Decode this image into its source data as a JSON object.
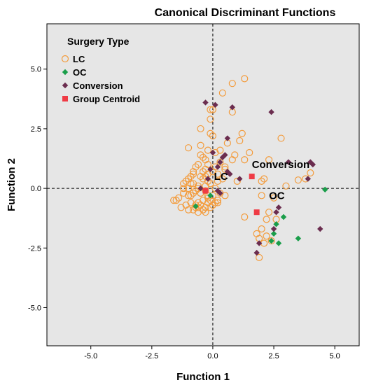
{
  "chart_data": {
    "type": "scatter",
    "title": "Canonical Discriminant Functions",
    "xlabel": "Function 1",
    "ylabel": "Function 2",
    "xlim": [
      -6.8,
      6.0
    ],
    "ylim": [
      -6.6,
      6.9
    ],
    "xticks": [
      -5.0,
      -2.5,
      0.0,
      2.5,
      5.0
    ],
    "xtick_labels": [
      "-5.0",
      "-2.5",
      "0.0",
      "2.5",
      "5.0"
    ],
    "yticks": [
      -5.0,
      -2.5,
      0.0,
      2.5,
      5.0
    ],
    "ytick_labels": [
      "-5.0",
      "-2.5",
      "0.0",
      "2.5",
      "5.0"
    ],
    "reference_lines": {
      "x": 0.0,
      "y": 0.0,
      "style": "dashed"
    },
    "grid": false,
    "legend": {
      "title": "Surgery Type",
      "placement": "top-left",
      "entries": [
        {
          "label": "LC",
          "marker": "open-circle",
          "color": "#f39c3d"
        },
        {
          "label": "OC",
          "marker": "diamond",
          "color": "#1a9e4a"
        },
        {
          "label": "Conversion",
          "marker": "diamond",
          "color": "#6b2d4f"
        },
        {
          "label": "Group Centroid",
          "marker": "square",
          "color": "#ef3b45"
        }
      ]
    },
    "annotations": [
      {
        "text": "LC",
        "x": 0.05,
        "y": 0.35
      },
      {
        "text": "Conversion",
        "x": 1.6,
        "y": 0.85
      },
      {
        "text": "OC",
        "x": 2.3,
        "y": -0.45
      }
    ],
    "series": [
      {
        "name": "LC",
        "marker": "open-circle",
        "color": "#f39c3d",
        "x": [
          1.3,
          0.8,
          0.4,
          0.0,
          -0.1,
          0.8,
          -0.1,
          -0.1,
          1.2,
          2.8,
          1.1,
          0.6,
          2.3,
          0.8,
          -1.0,
          -0.5,
          0.3,
          1.5,
          0.9,
          1.3,
          2.1,
          3.8,
          4.0,
          3.5,
          3.0,
          2.0,
          -0.5,
          -0.4,
          -0.3,
          -0.2,
          0.1,
          0.3,
          -0.6,
          -0.7,
          -0.3,
          0.0,
          0.2,
          0.5,
          -0.8,
          -0.9,
          -1.0,
          -1.1,
          -1.2,
          -0.5,
          -0.4,
          -0.2,
          -0.1,
          0.2,
          0.4,
          -0.3,
          -0.6,
          -0.7,
          -0.8,
          -0.9,
          -1.2,
          -1.4,
          -1.5,
          -1.6,
          -1.0,
          -0.5,
          -0.3,
          0.1,
          0.3,
          0.5,
          -0.6,
          -0.4,
          -0.2,
          0.0,
          0.2,
          -0.9,
          -1.1,
          -0.7,
          -0.5,
          -0.3,
          -0.2,
          -0.1,
          0.0,
          0.1,
          -1.3,
          -1.0,
          -0.8,
          -0.6,
          -0.4,
          -0.6,
          -0.8,
          -1.2,
          -0.2,
          -0.4,
          1.0,
          0.5,
          2.5,
          2.0,
          2.3,
          2.2,
          1.8,
          2.6,
          2.0,
          1.9,
          1.3,
          2.2,
          2.1,
          2.4,
          1.9,
          -0.3,
          -0.6,
          -0.7,
          -0.4,
          -0.1,
          0.2,
          0.1,
          -0.2,
          -0.5,
          -0.8,
          -0.9,
          -1.0,
          0.0,
          -0.3,
          -0.5,
          -0.2
        ],
        "y": [
          4.6,
          4.4,
          4.0,
          3.3,
          3.3,
          3.2,
          2.9,
          2.3,
          2.3,
          2.1,
          2.0,
          1.9,
          1.2,
          1.2,
          1.7,
          2.5,
          1.6,
          1.5,
          1.4,
          1.2,
          0.4,
          0.4,
          0.65,
          0.35,
          0.1,
          0.3,
          1.4,
          1.3,
          1.2,
          1.0,
          0.9,
          1.1,
          1.0,
          0.9,
          0.8,
          0.7,
          0.6,
          0.8,
          0.6,
          0.5,
          0.4,
          0.3,
          0.2,
          0.5,
          0.4,
          0.3,
          0.2,
          0.3,
          0.4,
          0.1,
          0.0,
          -0.1,
          -0.2,
          -0.3,
          -0.2,
          -0.4,
          -0.5,
          -0.5,
          -0.3,
          -0.2,
          -0.1,
          0.0,
          -0.2,
          -0.3,
          -0.6,
          -0.5,
          -0.4,
          -0.3,
          -0.5,
          -0.6,
          -0.7,
          -0.8,
          -0.7,
          -0.8,
          -0.6,
          -0.5,
          -0.7,
          -0.6,
          -0.8,
          -0.9,
          -0.9,
          -0.8,
          -0.9,
          0.1,
          0.2,
          0.0,
          0.6,
          0.7,
          0.3,
          0.9,
          -0.4,
          -0.3,
          -1.0,
          -1.3,
          -1.9,
          -1.3,
          -1.7,
          -2.1,
          -1.2,
          -2.0,
          -2.3,
          -2.2,
          -2.9,
          -1.0,
          -1.0,
          -0.7,
          -0.9,
          -0.8,
          -0.6,
          1.5,
          1.6,
          1.8,
          0.7,
          0.2,
          0.0,
          2.2,
          0.5,
          -0.2,
          -0.3
        ]
      },
      {
        "name": "OC",
        "marker": "diamond",
        "color": "#1a9e4a",
        "x": [
          -0.7,
          -0.1,
          4.6,
          2.9,
          2.6,
          2.5,
          2.4,
          2.7,
          3.5
        ],
        "y": [
          -0.75,
          -0.3,
          -0.05,
          -1.2,
          -1.5,
          -1.9,
          -2.2,
          -2.3,
          -2.1
        ]
      },
      {
        "name": "Conversion",
        "marker": "diamond",
        "color": "#6b2d4f",
        "x": [
          -0.3,
          0.1,
          0.8,
          2.4,
          0.6,
          0.5,
          0.4,
          0.3,
          0.2,
          0.0,
          -0.1,
          -0.2,
          0.6,
          0.7,
          1.1,
          3.1,
          4.0,
          4.1,
          3.9,
          2.7,
          2.6,
          2.5,
          1.9,
          1.8,
          4.4,
          0.2,
          -0.5,
          0.3
        ],
        "y": [
          3.6,
          3.5,
          3.4,
          3.2,
          2.1,
          1.4,
          1.3,
          1.1,
          0.9,
          1.5,
          0.8,
          0.4,
          0.7,
          0.6,
          0.4,
          1.1,
          1.1,
          1.0,
          0.4,
          -0.8,
          -1.0,
          -1.7,
          -2.3,
          -2.7,
          -1.7,
          -0.1,
          0.0,
          -0.2
        ]
      },
      {
        "name": "Group Centroid",
        "marker": "square",
        "color": "#ef3b45",
        "x": [
          -0.3,
          1.6,
          1.8
        ],
        "y": [
          -0.1,
          0.5,
          -1.0
        ]
      }
    ]
  }
}
